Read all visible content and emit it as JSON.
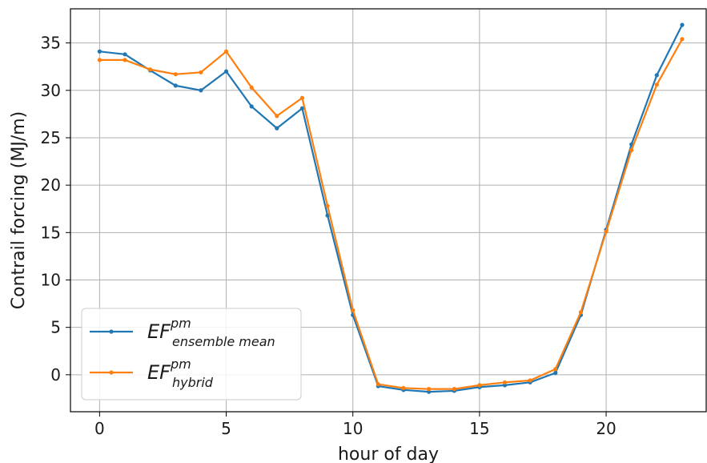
{
  "chart_data": {
    "type": "line",
    "title": "",
    "xlabel": "hour of day",
    "ylabel": "Contrail forcing (MJ/m)",
    "xlim": [
      -1.15,
      23.95
    ],
    "ylim": [
      -3.9,
      38.6
    ],
    "xticks": [
      0,
      5,
      10,
      15,
      20
    ],
    "yticks": [
      0,
      5,
      10,
      15,
      20,
      25,
      30,
      35
    ],
    "grid": true,
    "legend_position": "lower-left",
    "x": [
      0,
      1,
      2,
      3,
      4,
      5,
      6,
      7,
      8,
      9,
      10,
      11,
      12,
      13,
      14,
      15,
      16,
      17,
      18,
      19,
      20,
      21,
      22,
      23
    ],
    "series": [
      {
        "name": "EF^{pm}_{ensemble mean}",
        "legend_base": "EF",
        "legend_sup": "pm",
        "legend_sub": "ensemble mean",
        "color": "#1f77b4",
        "values": [
          34.1,
          33.8,
          32.1,
          30.5,
          30.0,
          32.0,
          28.3,
          26.0,
          28.1,
          16.8,
          6.3,
          -1.2,
          -1.6,
          -1.8,
          -1.7,
          -1.3,
          -1.1,
          -0.8,
          0.2,
          6.3,
          15.3,
          24.3,
          31.6,
          36.9
        ]
      },
      {
        "name": "EF^{pm}_{hybrid}",
        "legend_base": "EF",
        "legend_sup": "pm",
        "legend_sub": "hybrid",
        "color": "#ff7f0e",
        "values": [
          33.2,
          33.2,
          32.2,
          31.7,
          31.9,
          34.1,
          30.3,
          27.3,
          29.2,
          17.8,
          6.8,
          -1.0,
          -1.4,
          -1.5,
          -1.5,
          -1.1,
          -0.8,
          -0.6,
          0.6,
          6.6,
          15.1,
          23.7,
          30.6,
          35.4
        ]
      }
    ]
  }
}
